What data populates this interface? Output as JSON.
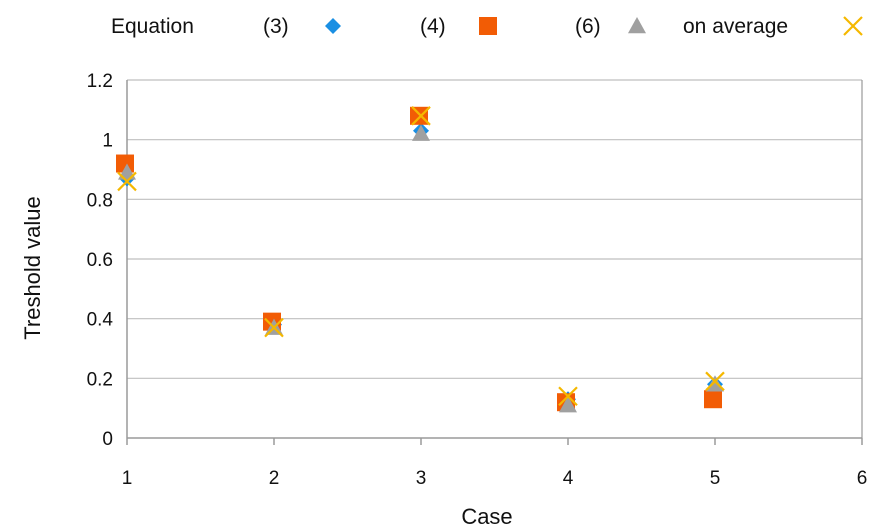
{
  "chart_data": {
    "type": "scatter",
    "xlabel": "Case",
    "ylabel": "Treshold value",
    "xlim": [
      1,
      6
    ],
    "ylim": [
      0,
      1.2
    ],
    "xticks": [
      "1",
      "2",
      "3",
      "4",
      "5",
      "6"
    ],
    "yticks": [
      "0",
      "0.2",
      "0.4",
      "0.6",
      "0.8",
      "1",
      "1.2"
    ],
    "grid": "horizontal",
    "legend_position": "top",
    "legend_title": "Equation",
    "series": [
      {
        "name": "(3)",
        "marker": "diamond",
        "color": "#1a8fe3",
        "points": [
          [
            1,
            0.87
          ],
          [
            2,
            0.38
          ],
          [
            3,
            1.03
          ],
          [
            4,
            0.13
          ],
          [
            5,
            0.18
          ]
        ]
      },
      {
        "name": "(4)",
        "marker": "square",
        "color": "#f25c05",
        "points": [
          [
            1,
            0.92
          ],
          [
            2,
            0.39
          ],
          [
            3,
            1.08
          ],
          [
            4,
            0.12
          ],
          [
            5,
            0.13
          ]
        ]
      },
      {
        "name": "(6)",
        "marker": "triangle",
        "color": "#a0a0a0",
        "points": [
          [
            1,
            0.89
          ],
          [
            2,
            0.37
          ],
          [
            3,
            1.02
          ],
          [
            4,
            0.11
          ],
          [
            5,
            0.18
          ]
        ]
      },
      {
        "name": "on average",
        "marker": "x",
        "color": "#f5b800",
        "points": [
          [
            1,
            0.86
          ],
          [
            2,
            0.37
          ],
          [
            3,
            1.08
          ],
          [
            4,
            0.14
          ],
          [
            5,
            0.19
          ]
        ]
      }
    ]
  }
}
